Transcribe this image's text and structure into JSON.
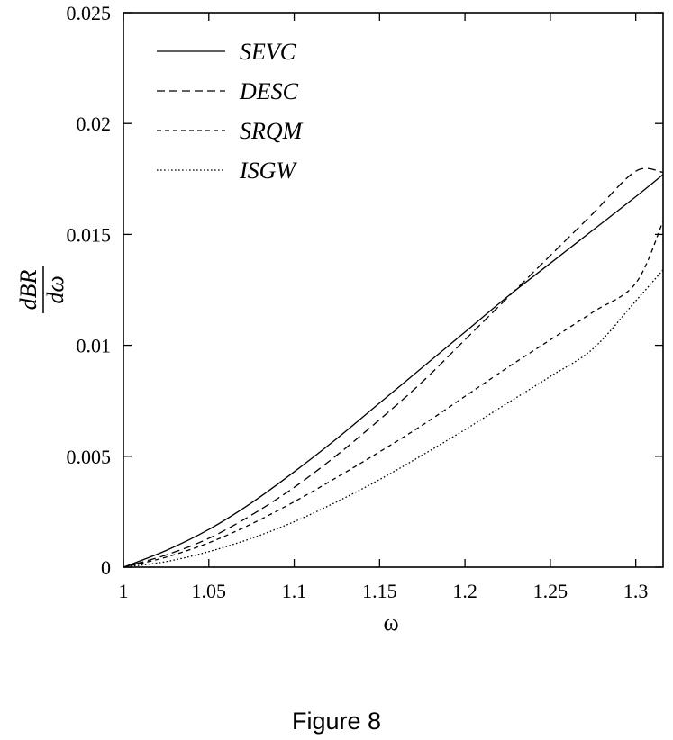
{
  "figure_caption": "Figure 8",
  "chart_data": {
    "type": "line",
    "xlabel": "ω",
    "ylabel": {
      "numerator": "dBR",
      "denominator": "dω"
    },
    "xlim": [
      1.0,
      1.316
    ],
    "ylim": [
      0,
      0.025
    ],
    "xticks": [
      1,
      1.05,
      1.1,
      1.15,
      1.2,
      1.25,
      1.3
    ],
    "xtick_labels": [
      "1",
      "1.05",
      "1.1",
      "1.15",
      "1.2",
      "1.25",
      "1.3"
    ],
    "yticks": [
      0,
      0.005,
      0.01,
      0.015,
      0.02,
      0.025
    ],
    "ytick_labels": [
      "0",
      "0.005",
      "0.01",
      "0.015",
      "0.02",
      "0.025"
    ],
    "grid": false,
    "legend_position": "top-left",
    "x": [
      1.0,
      1.025,
      1.05,
      1.075,
      1.1,
      1.125,
      1.15,
      1.175,
      1.2,
      1.225,
      1.25,
      1.275,
      1.3,
      1.316
    ],
    "series": [
      {
        "name": "SEVC",
        "style": "solid",
        "values": [
          0,
          0.00075,
          0.0017,
          0.0029,
          0.0043,
          0.0058,
          0.0074,
          0.009,
          0.0106,
          0.0122,
          0.0137,
          0.0152,
          0.0167,
          0.0177
        ]
      },
      {
        "name": "DESC",
        "style": "long-dash",
        "values": [
          0,
          0.00055,
          0.0013,
          0.00235,
          0.0036,
          0.00505,
          0.00665,
          0.00835,
          0.01025,
          0.01215,
          0.01405,
          0.01595,
          0.01785,
          0.0178
        ]
      },
      {
        "name": "SRQM",
        "style": "short-dash",
        "values": [
          0,
          0.00045,
          0.0011,
          0.00195,
          0.00295,
          0.00405,
          0.0052,
          0.0064,
          0.0077,
          0.009,
          0.01025,
          0.0115,
          0.0128,
          0.0156
        ]
      },
      {
        "name": "ISGW",
        "style": "dotted",
        "values": [
          0,
          0.00025,
          0.0007,
          0.0013,
          0.00205,
          0.00295,
          0.00395,
          0.00505,
          0.0062,
          0.0074,
          0.0086,
          0.00985,
          0.012,
          0.0134
        ]
      }
    ]
  }
}
